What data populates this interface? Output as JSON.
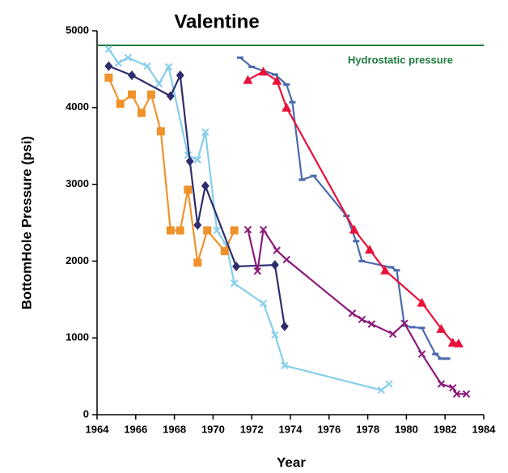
{
  "chart_data": {
    "type": "line",
    "title": "Valentine",
    "x_label": "Year",
    "y_label": "BottomHole Pressure (psi)",
    "xlim": [
      1964,
      1984
    ],
    "xticks": [
      1964,
      1966,
      1968,
      1970,
      1972,
      1974,
      1976,
      1978,
      1980,
      1982,
      1984
    ],
    "ylim": [
      0,
      5000
    ],
    "yticks": [
      0,
      1000,
      2000,
      3000,
      4000,
      5000
    ],
    "annotation": "Hydrostatic pressure",
    "annotation_color": "#1e7b3c",
    "series": [
      {
        "color": "#1e7b3c",
        "marker": "none",
        "x": [
          1964,
          1984
        ],
        "values": [
          4810,
          4810
        ]
      },
      {
        "color": "#87ceeb",
        "marker": "x",
        "x": [
          1964.6,
          1965.1,
          1965.6,
          1966.6,
          1967.2,
          1967.7,
          1968.7,
          1969.2,
          1969.6,
          1970.2,
          1970.7,
          1971.1,
          1972.6,
          1973.2,
          1973.7,
          1978.7,
          1979.1
        ],
        "values": [
          4760,
          4580,
          4650,
          4540,
          4310,
          4530,
          3380,
          3320,
          3680,
          2400,
          2200,
          1710,
          1450,
          1040,
          640,
          320,
          400
        ]
      },
      {
        "color": "#f0922b",
        "marker": "square",
        "x": [
          1964.6,
          1965.2,
          1965.8,
          1966.3,
          1966.8,
          1967.3,
          1967.8,
          1968.3,
          1968.7,
          1969.2,
          1969.7,
          1970.6,
          1971.1
        ],
        "values": [
          4390,
          4050,
          4170,
          3930,
          4170,
          3690,
          2400,
          2400,
          2930,
          1980,
          2400,
          2130,
          2400
        ]
      },
      {
        "color": "#2e2e6e",
        "marker": "diamond",
        "x": [
          1964.6,
          1965.8,
          1967.8,
          1968.3,
          1968.8,
          1969.2,
          1969.6,
          1971.2,
          1973.2,
          1973.7
        ],
        "values": [
          4540,
          4420,
          4150,
          4420,
          3300,
          2470,
          2980,
          1930,
          1950,
          1150
        ]
      },
      {
        "color": "#4a6aad",
        "marker": "dash",
        "x": [
          1971.4,
          1972,
          1973.2,
          1973.8,
          1974.1,
          1974.6,
          1975.2,
          1976.9,
          1977.4,
          1977.7,
          1979.2,
          1979.5,
          1979.9,
          1980.3,
          1980.8,
          1981.5,
          1981.8,
          1982.1
        ],
        "values": [
          4650,
          4530,
          4430,
          4300,
          4070,
          3060,
          3110,
          2590,
          2260,
          2000,
          1920,
          1880,
          1160,
          1140,
          1130,
          790,
          730,
          730
        ]
      },
      {
        "color": "#e8113a",
        "marker": "triangle",
        "x": [
          1971.8,
          1972.6,
          1973.3,
          1973.8,
          1977.3,
          1978.1,
          1978.9,
          1980.8,
          1981.8,
          1982.4,
          1982.7
        ],
        "values": [
          4360,
          4470,
          4350,
          4000,
          2410,
          2150,
          1880,
          1460,
          1120,
          940,
          930
        ]
      },
      {
        "color": "#8b1a7a",
        "marker": "x",
        "x": [
          1971.8,
          1972.3,
          1972.6,
          1973.3,
          1973.8,
          1977.2,
          1977.7,
          1978.2,
          1979.3,
          1979.9,
          1980.8,
          1981.8,
          1982.4,
          1982.6,
          1983.1
        ],
        "values": [
          2410,
          1870,
          2410,
          2140,
          2020,
          1320,
          1240,
          1180,
          1050,
          1190,
          790,
          400,
          350,
          270,
          270
        ]
      }
    ]
  }
}
